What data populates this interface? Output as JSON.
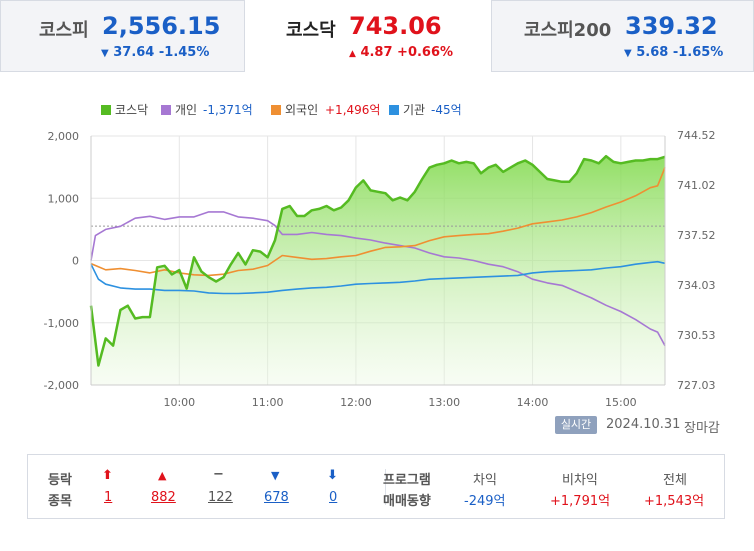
{
  "tabs": [
    {
      "name": "코스피",
      "value": "2,556.15",
      "change_arrow": "▼",
      "change": "37.64 -1.45%",
      "direction": "down",
      "active": false
    },
    {
      "name": "코스닥",
      "value": "743.06",
      "change_arrow": "▲",
      "change": "4.87 +0.66%",
      "direction": "up",
      "active": true
    },
    {
      "name": "코스피200",
      "value": "339.32",
      "change_arrow": "▼",
      "change": "5.68 -1.65%",
      "direction": "down",
      "active": false
    }
  ],
  "chart_data": {
    "type": "line",
    "legend": [
      {
        "name": "코스닥",
        "value": "",
        "color": "#55bb22"
      },
      {
        "name": "개인",
        "value": "-1,371억",
        "color": "#a678d3"
      },
      {
        "name": "외국인",
        "value": "+1,496억",
        "color": "#ef8f32"
      },
      {
        "name": "기관",
        "value": "-45억",
        "color": "#2d91e0"
      }
    ],
    "x_ticks": [
      "10:00",
      "11:00",
      "12:00",
      "13:00",
      "14:00",
      "15:00"
    ],
    "x_range": [
      "09:00",
      "15:30"
    ],
    "left_axis": {
      "ticks": [
        "2,000",
        "1,000",
        "0",
        "-1,000",
        "-2,000"
      ],
      "range": [
        -2000,
        2000
      ]
    },
    "right_axis": {
      "ticks": [
        "744.52",
        "741.02",
        "737.52",
        "734.03",
        "730.53",
        "727.03"
      ],
      "range": [
        727.03,
        744.52
      ]
    },
    "previous_close": 738.19,
    "series": [
      {
        "name": "코스닥",
        "axis": "right",
        "color": "#55bb22",
        "points": [
          [
            "09:00",
            732.6
          ],
          [
            "09:05",
            728.4
          ],
          [
            "09:10",
            730.3
          ],
          [
            "09:15",
            729.8
          ],
          [
            "09:20",
            732.3
          ],
          [
            "09:25",
            732.6
          ],
          [
            "09:30",
            731.7
          ],
          [
            "09:35",
            731.8
          ],
          [
            "09:40",
            731.8
          ],
          [
            "09:45",
            735.3
          ],
          [
            "09:50",
            735.4
          ],
          [
            "09:55",
            734.8
          ],
          [
            "10:00",
            735.1
          ],
          [
            "10:05",
            733.8
          ],
          [
            "10:10",
            736.0
          ],
          [
            "10:15",
            735.0
          ],
          [
            "10:20",
            734.6
          ],
          [
            "10:25",
            734.3
          ],
          [
            "10:30",
            734.6
          ],
          [
            "10:35",
            735.5
          ],
          [
            "10:40",
            736.3
          ],
          [
            "10:45",
            735.5
          ],
          [
            "10:50",
            736.5
          ],
          [
            "10:55",
            736.4
          ],
          [
            "11:00",
            736.0
          ],
          [
            "11:05",
            737.2
          ],
          [
            "11:10",
            739.4
          ],
          [
            "11:15",
            739.6
          ],
          [
            "11:20",
            738.9
          ],
          [
            "11:25",
            738.9
          ],
          [
            "11:30",
            739.3
          ],
          [
            "11:35",
            739.4
          ],
          [
            "11:40",
            739.6
          ],
          [
            "11:45",
            739.3
          ],
          [
            "11:50",
            739.5
          ],
          [
            "11:55",
            740.0
          ],
          [
            "12:00",
            740.9
          ],
          [
            "12:05",
            741.4
          ],
          [
            "12:10",
            740.7
          ],
          [
            "12:15",
            740.6
          ],
          [
            "12:20",
            740.5
          ],
          [
            "12:25",
            740.0
          ],
          [
            "12:30",
            740.2
          ],
          [
            "12:35",
            740.0
          ],
          [
            "12:40",
            740.6
          ],
          [
            "12:45",
            741.5
          ],
          [
            "12:50",
            742.3
          ],
          [
            "12:55",
            742.5
          ],
          [
            "13:00",
            742.6
          ],
          [
            "13:05",
            742.8
          ],
          [
            "13:10",
            742.6
          ],
          [
            "13:15",
            742.7
          ],
          [
            "13:20",
            742.6
          ],
          [
            "13:25",
            741.9
          ],
          [
            "13:30",
            742.3
          ],
          [
            "13:35",
            742.5
          ],
          [
            "13:40",
            742.0
          ],
          [
            "13:45",
            742.3
          ],
          [
            "13:50",
            742.6
          ],
          [
            "13:55",
            742.8
          ],
          [
            "14:00",
            742.5
          ],
          [
            "14:05",
            742.0
          ],
          [
            "14:10",
            741.5
          ],
          [
            "14:15",
            741.4
          ],
          [
            "14:20",
            741.3
          ],
          [
            "14:25",
            741.3
          ],
          [
            "14:30",
            741.9
          ],
          [
            "14:35",
            742.9
          ],
          [
            "14:40",
            742.8
          ],
          [
            "14:45",
            742.6
          ],
          [
            "14:50",
            743.1
          ],
          [
            "14:55",
            742.7
          ],
          [
            "15:00",
            742.6
          ],
          [
            "15:05",
            742.7
          ],
          [
            "15:10",
            742.8
          ],
          [
            "15:15",
            742.8
          ],
          [
            "15:20",
            742.9
          ],
          [
            "15:25",
            742.9
          ],
          [
            "15:30",
            743.06
          ]
        ]
      },
      {
        "name": "개인",
        "axis": "left",
        "color": "#a678d3",
        "points": [
          [
            "09:00",
            0
          ],
          [
            "09:03",
            400
          ],
          [
            "09:10",
            500
          ],
          [
            "09:20",
            550
          ],
          [
            "09:30",
            680
          ],
          [
            "09:40",
            710
          ],
          [
            "09:50",
            660
          ],
          [
            "10:00",
            700
          ],
          [
            "10:10",
            700
          ],
          [
            "10:20",
            780
          ],
          [
            "10:30",
            780
          ],
          [
            "10:40",
            700
          ],
          [
            "10:50",
            680
          ],
          [
            "11:00",
            640
          ],
          [
            "11:05",
            560
          ],
          [
            "11:10",
            420
          ],
          [
            "11:20",
            420
          ],
          [
            "11:30",
            450
          ],
          [
            "11:40",
            420
          ],
          [
            "11:50",
            400
          ],
          [
            "12:00",
            360
          ],
          [
            "12:10",
            330
          ],
          [
            "12:20",
            280
          ],
          [
            "12:30",
            240
          ],
          [
            "12:40",
            200
          ],
          [
            "12:50",
            120
          ],
          [
            "13:00",
            60
          ],
          [
            "13:10",
            40
          ],
          [
            "13:20",
            0
          ],
          [
            "13:30",
            -60
          ],
          [
            "13:40",
            -100
          ],
          [
            "13:50",
            -180
          ],
          [
            "14:00",
            -300
          ],
          [
            "14:10",
            -360
          ],
          [
            "14:20",
            -400
          ],
          [
            "14:30",
            -500
          ],
          [
            "14:40",
            -600
          ],
          [
            "14:50",
            -720
          ],
          [
            "15:00",
            -820
          ],
          [
            "15:10",
            -950
          ],
          [
            "15:20",
            -1100
          ],
          [
            "15:25",
            -1150
          ],
          [
            "15:30",
            -1371
          ]
        ]
      },
      {
        "name": "외국인",
        "axis": "left",
        "color": "#ef8f32",
        "points": [
          [
            "09:00",
            -50
          ],
          [
            "09:05",
            -100
          ],
          [
            "09:10",
            -150
          ],
          [
            "09:20",
            -130
          ],
          [
            "09:30",
            -160
          ],
          [
            "09:40",
            -200
          ],
          [
            "09:50",
            -150
          ],
          [
            "10:00",
            -200
          ],
          [
            "10:10",
            -230
          ],
          [
            "10:20",
            -240
          ],
          [
            "10:30",
            -220
          ],
          [
            "10:40",
            -160
          ],
          [
            "10:50",
            -140
          ],
          [
            "11:00",
            -80
          ],
          [
            "11:10",
            80
          ],
          [
            "11:20",
            50
          ],
          [
            "11:30",
            20
          ],
          [
            "11:40",
            30
          ],
          [
            "11:50",
            60
          ],
          [
            "12:00",
            80
          ],
          [
            "12:10",
            150
          ],
          [
            "12:20",
            210
          ],
          [
            "12:30",
            220
          ],
          [
            "12:40",
            240
          ],
          [
            "12:50",
            320
          ],
          [
            "13:00",
            380
          ],
          [
            "13:10",
            400
          ],
          [
            "13:20",
            420
          ],
          [
            "13:30",
            430
          ],
          [
            "13:40",
            470
          ],
          [
            "13:50",
            520
          ],
          [
            "14:00",
            590
          ],
          [
            "14:10",
            620
          ],
          [
            "14:20",
            650
          ],
          [
            "14:30",
            700
          ],
          [
            "14:40",
            770
          ],
          [
            "14:50",
            860
          ],
          [
            "15:00",
            940
          ],
          [
            "15:10",
            1040
          ],
          [
            "15:20",
            1170
          ],
          [
            "15:25",
            1200
          ],
          [
            "15:30",
            1496
          ]
        ]
      },
      {
        "name": "기관",
        "axis": "left",
        "color": "#2d91e0",
        "points": [
          [
            "09:00",
            -60
          ],
          [
            "09:05",
            -300
          ],
          [
            "09:10",
            -380
          ],
          [
            "09:20",
            -440
          ],
          [
            "09:30",
            -460
          ],
          [
            "09:40",
            -460
          ],
          [
            "09:50",
            -480
          ],
          [
            "10:00",
            -480
          ],
          [
            "10:10",
            -490
          ],
          [
            "10:20",
            -520
          ],
          [
            "10:30",
            -530
          ],
          [
            "10:40",
            -530
          ],
          [
            "10:50",
            -520
          ],
          [
            "11:00",
            -510
          ],
          [
            "11:10",
            -480
          ],
          [
            "11:20",
            -460
          ],
          [
            "11:30",
            -440
          ],
          [
            "11:40",
            -430
          ],
          [
            "11:50",
            -410
          ],
          [
            "12:00",
            -380
          ],
          [
            "12:10",
            -370
          ],
          [
            "12:20",
            -360
          ],
          [
            "12:30",
            -350
          ],
          [
            "12:40",
            -330
          ],
          [
            "12:50",
            -300
          ],
          [
            "13:00",
            -290
          ],
          [
            "13:10",
            -280
          ],
          [
            "13:20",
            -270
          ],
          [
            "13:30",
            -260
          ],
          [
            "13:40",
            -250
          ],
          [
            "13:50",
            -240
          ],
          [
            "14:00",
            -200
          ],
          [
            "14:10",
            -180
          ],
          [
            "14:20",
            -170
          ],
          [
            "14:30",
            -160
          ],
          [
            "14:40",
            -150
          ],
          [
            "14:50",
            -120
          ],
          [
            "15:00",
            -100
          ],
          [
            "15:10",
            -60
          ],
          [
            "15:20",
            -30
          ],
          [
            "15:25",
            -20
          ],
          [
            "15:30",
            -45
          ]
        ]
      }
    ]
  },
  "realtime_label": "실시간",
  "date": "2024.10.31",
  "market_status": "장마감",
  "breadth": {
    "labels": [
      "등락",
      "종목"
    ],
    "items": [
      {
        "symbol": "⬆",
        "count": "1",
        "color": "#e0121b"
      },
      {
        "symbol": "▲",
        "count": "882",
        "color": "#e0121b"
      },
      {
        "symbol": "−",
        "count": "122",
        "color": "#555555"
      },
      {
        "symbol": "▼",
        "count": "678",
        "color": "#1a5fc6"
      },
      {
        "symbol": "⬇",
        "count": "0",
        "color": "#1a5fc6"
      }
    ]
  },
  "program": {
    "labels": [
      "프로그램",
      "매매동향"
    ],
    "columns": [
      {
        "header": "차익",
        "value": "-249억",
        "direction": "down"
      },
      {
        "header": "비차익",
        "value": "+1,791억",
        "direction": "up"
      },
      {
        "header": "전체",
        "value": "+1,543억",
        "direction": "up"
      }
    ]
  }
}
